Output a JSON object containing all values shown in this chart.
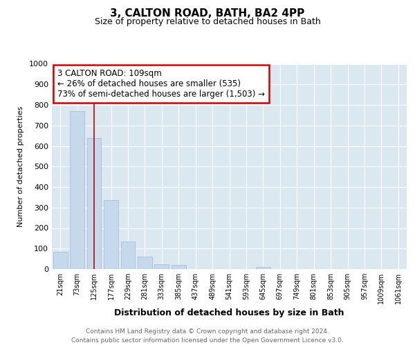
{
  "title": "3, CALTON ROAD, BATH, BA2 4PP",
  "subtitle": "Size of property relative to detached houses in Bath",
  "xlabel": "Distribution of detached houses by size in Bath",
  "ylabel": "Number of detached properties",
  "footer_line1": "Contains HM Land Registry data © Crown copyright and database right 2024.",
  "footer_line2": "Contains public sector information licensed under the Open Government Licence v3.0.",
  "annotation_title": "3 CALTON ROAD: 109sqm",
  "annotation_line1": "← 26% of detached houses are smaller (535)",
  "annotation_line2": "73% of semi-detached houses are larger (1,503) →",
  "bar_color": "#c6d9ec",
  "bar_edge_color": "#9ab8d4",
  "vline_color": "#cc0000",
  "annotation_box_edgecolor": "#cc0000",
  "annotation_box_facecolor": "#ffffff",
  "fig_facecolor": "#ffffff",
  "plot_facecolor": "#dce8f0",
  "grid_color": "#ffffff",
  "categories": [
    "21sqm",
    "73sqm",
    "125sqm",
    "177sqm",
    "229sqm",
    "281sqm",
    "333sqm",
    "385sqm",
    "437sqm",
    "489sqm",
    "541sqm",
    "593sqm",
    "645sqm",
    "697sqm",
    "749sqm",
    "801sqm",
    "853sqm",
    "905sqm",
    "957sqm",
    "1009sqm",
    "1061sqm"
  ],
  "values": [
    85,
    770,
    640,
    335,
    135,
    60,
    25,
    20,
    0,
    0,
    0,
    0,
    10,
    0,
    0,
    0,
    0,
    0,
    0,
    0,
    0
  ],
  "ylim": [
    0,
    1000
  ],
  "yticks": [
    0,
    100,
    200,
    300,
    400,
    500,
    600,
    700,
    800,
    900,
    1000
  ],
  "vline_position": 2.0,
  "title_fontsize": 11,
  "subtitle_fontsize": 9
}
